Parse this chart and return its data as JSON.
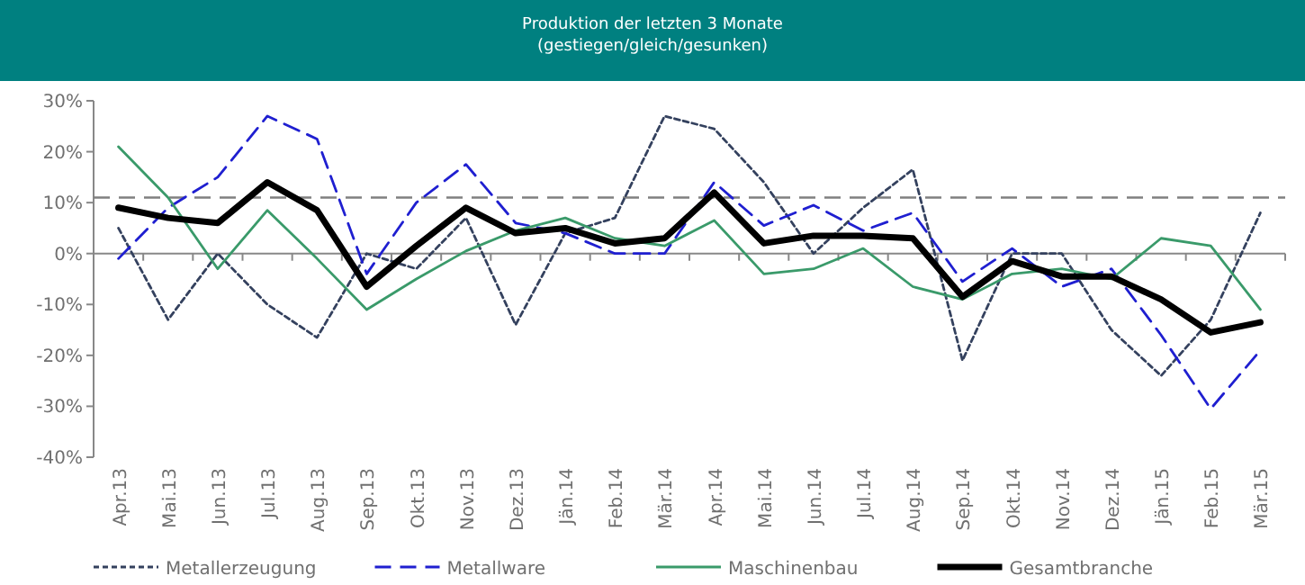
{
  "chart_data": {
    "type": "line",
    "title": "Produktion der letzten 3 Monate",
    "subtitle": "(gestiegen/gleich/gesunken)",
    "categories": [
      "Apr.13",
      "Mai.13",
      "Jun.13",
      "Jul.13",
      "Aug.13",
      "Sep.13",
      "Okt.13",
      "Nov.13",
      "Dez.13",
      "Jän.14",
      "Feb.14",
      "Mär.14",
      "Apr.14",
      "Mai.14",
      "Jun.14",
      "Jul.14",
      "Aug.14",
      "Sep.14",
      "Okt.14",
      "Nov.14",
      "Dez.14",
      "Jän.15",
      "Feb.15",
      "Mär.15"
    ],
    "series": [
      {
        "name": "Metallerzeugung",
        "color": "#34415e",
        "line_style": "dotted",
        "values": [
          5,
          -13,
          0,
          -10,
          -16.5,
          0,
          -3,
          7,
          -14,
          4,
          7,
          27,
          24.5,
          14,
          0,
          9,
          16.5,
          -21,
          0,
          0,
          -15,
          -24,
          -13,
          8
        ]
      },
      {
        "name": "Metallware",
        "color": "#1f1fd0",
        "line_style": "dashed",
        "values": [
          -1,
          9,
          15,
          27,
          22.5,
          -4,
          10,
          17.5,
          6,
          4,
          0,
          0,
          14,
          5.5,
          9.5,
          4.5,
          8,
          -5.5,
          1,
          -6.5,
          -3,
          -16,
          -30.5,
          -19
        ]
      },
      {
        "name": "Maschinenbau",
        "color": "#3a9a6a",
        "line_style": "solid",
        "values": [
          21,
          11,
          -3,
          8.5,
          -1,
          -11,
          -5,
          0.5,
          4.5,
          7,
          3,
          1.5,
          6.5,
          -4,
          -3,
          1,
          -6.5,
          -9,
          -4,
          -3,
          -5,
          3,
          1.5,
          -11
        ]
      },
      {
        "name": "Gesamtbranche",
        "color": "#000000",
        "line_style": "solid",
        "values": [
          9,
          7,
          6,
          14,
          8.5,
          -6.5,
          1.5,
          9,
          4,
          5,
          2,
          3,
          12,
          2,
          3.5,
          3.5,
          3,
          -8.5,
          -1.5,
          -4.5,
          -4.5,
          -9,
          -15.5,
          -13.5
        ]
      }
    ],
    "ylim": [
      -40,
      30
    ],
    "yticks": [
      {
        "value": -40,
        "label": "-40%"
      },
      {
        "value": -30,
        "label": "-30%"
      },
      {
        "value": -20,
        "label": "-20%"
      },
      {
        "value": -10,
        "label": "-10%"
      },
      {
        "value": 0,
        "label": "0%"
      },
      {
        "value": 10,
        "label": "10%"
      },
      {
        "value": 20,
        "label": "20%"
      },
      {
        "value": 30,
        "label": "30%"
      }
    ],
    "ref_lines": [
      {
        "axis": "y",
        "value": 11,
        "color": "#808080",
        "line_style": "dashed"
      }
    ],
    "legend": "bottom",
    "marker": "none"
  }
}
